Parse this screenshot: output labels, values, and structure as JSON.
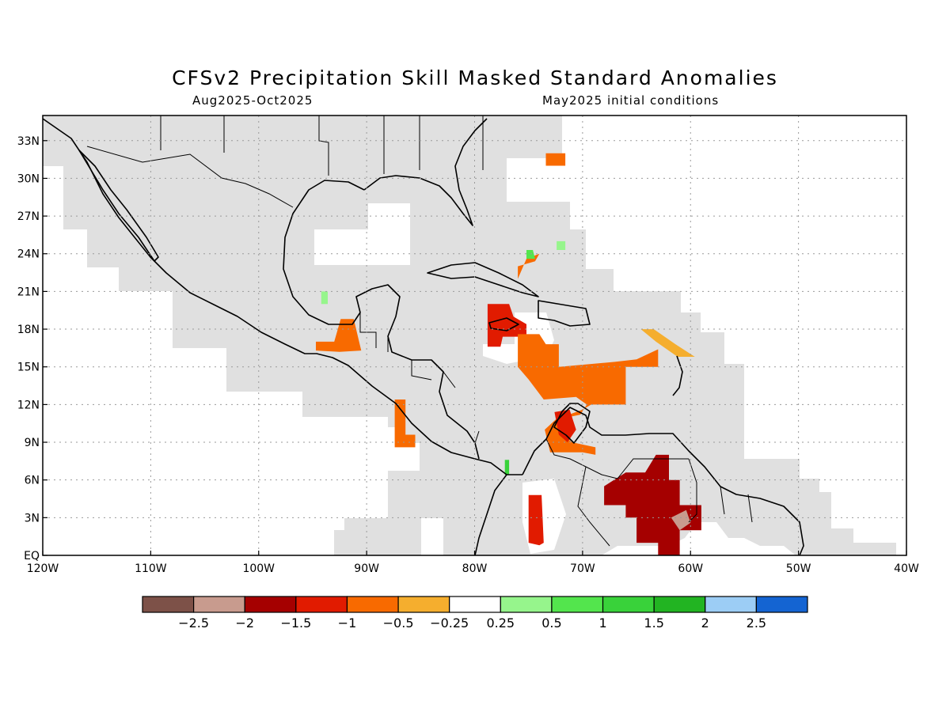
{
  "title": "CFSv2 Precipitation Skill Masked Standard Anomalies",
  "subtitle_left": "Aug2025-Oct2025",
  "subtitle_right": "May2025 initial conditions",
  "map": {
    "lon_range": [
      -120,
      -40
    ],
    "lat_range": [
      0,
      35
    ],
    "x_ticks": [
      {
        "lon": -120,
        "label": "120W"
      },
      {
        "lon": -110,
        "label": "110W"
      },
      {
        "lon": -100,
        "label": "100W"
      },
      {
        "lon": -90,
        "label": "90W"
      },
      {
        "lon": -80,
        "label": "80W"
      },
      {
        "lon": -70,
        "label": "70W"
      },
      {
        "lon": -60,
        "label": "60W"
      },
      {
        "lon": -50,
        "label": "50W"
      },
      {
        "lon": -40,
        "label": "40W"
      }
    ],
    "y_ticks": [
      {
        "lat": 0,
        "label": "EQ"
      },
      {
        "lat": 3,
        "label": "3N"
      },
      {
        "lat": 6,
        "label": "6N"
      },
      {
        "lat": 9,
        "label": "9N"
      },
      {
        "lat": 12,
        "label": "12N"
      },
      {
        "lat": 15,
        "label": "15N"
      },
      {
        "lat": 18,
        "label": "18N"
      },
      {
        "lat": 21,
        "label": "21N"
      },
      {
        "lat": 24,
        "label": "24N"
      },
      {
        "lat": 27,
        "label": "27N"
      },
      {
        "lat": 30,
        "label": "30N"
      },
      {
        "lat": 33,
        "label": "33N"
      }
    ],
    "mask_color": "#e0e0e0",
    "anomaly_regions": [
      {
        "name": "gulf-of-honduras",
        "value": -0.75,
        "color": "#f86a00",
        "lonlat": [
          [
            -94.7,
            17
          ],
          [
            -93,
            17
          ],
          [
            -92.4,
            18.8
          ],
          [
            -91.2,
            18.8
          ],
          [
            -90.5,
            16.3
          ],
          [
            -92.5,
            16.2
          ],
          [
            -94.7,
            16.3
          ]
        ]
      },
      {
        "name": "yucatan-green",
        "value": 0.4,
        "color": "#96f58c",
        "lonlat": [
          [
            -94.2,
            20
          ],
          [
            -93.6,
            20
          ],
          [
            -93.6,
            21
          ],
          [
            -94.2,
            21
          ]
        ]
      },
      {
        "name": "pacific-guatemala",
        "value": -0.75,
        "color": "#f86a00",
        "lonlat": [
          [
            -87.4,
            12.4
          ],
          [
            -86.4,
            12.4
          ],
          [
            -86.4,
            9.6
          ],
          [
            -85.5,
            9.6
          ],
          [
            -85.5,
            8.6
          ],
          [
            -87.4,
            8.6
          ]
        ]
      },
      {
        "name": "jamaica",
        "value": -1.25,
        "color": "#e11b00",
        "lonlat": [
          [
            -78.8,
            20
          ],
          [
            -76.8,
            20
          ],
          [
            -76.4,
            19
          ],
          [
            -75.2,
            18.4
          ],
          [
            -75.2,
            17.4
          ],
          [
            -77.4,
            17.4
          ],
          [
            -77.6,
            16.6
          ],
          [
            -78.8,
            16.6
          ]
        ]
      },
      {
        "name": "central-caribbean",
        "value": -0.75,
        "color": "#f86a00",
        "lonlat": [
          [
            -76,
            17.6
          ],
          [
            -74,
            17.6
          ],
          [
            -73.4,
            16.8
          ],
          [
            -72.2,
            16.8
          ],
          [
            -72.2,
            15
          ],
          [
            -67,
            15.4
          ],
          [
            -65,
            15.6
          ],
          [
            -63,
            16.4
          ],
          [
            -63,
            15
          ],
          [
            -66,
            15
          ],
          [
            -66,
            12
          ],
          [
            -69.2,
            12
          ],
          [
            -70,
            11.6
          ],
          [
            -72.5,
            10.8
          ],
          [
            -73.5,
            10
          ],
          [
            -73,
            8.2
          ],
          [
            -70,
            8.2
          ],
          [
            -68.8,
            8
          ],
          [
            -68.8,
            8.6
          ],
          [
            -71,
            9
          ],
          [
            -72,
            9.8
          ],
          [
            -71.3,
            11
          ],
          [
            -70.2,
            11.2
          ],
          [
            -69.6,
            12
          ],
          [
            -70.6,
            12.6
          ],
          [
            -73.6,
            12.4
          ],
          [
            -75,
            14
          ],
          [
            -76,
            15
          ]
        ]
      },
      {
        "name": "maracaibo",
        "value": -1.25,
        "color": "#e11b00",
        "lonlat": [
          [
            -72.6,
            11.4
          ],
          [
            -71.2,
            11.6
          ],
          [
            -70.6,
            10
          ],
          [
            -71.4,
            9
          ],
          [
            -72.2,
            9.6
          ]
        ]
      },
      {
        "name": "lesser-antilles",
        "value": -0.4,
        "color": "#f5ae2e",
        "lonlat": [
          [
            -64.6,
            18
          ],
          [
            -63.2,
            17
          ],
          [
            -61.2,
            15.8
          ],
          [
            -59.6,
            15.8
          ],
          [
            -61.4,
            16.8
          ],
          [
            -63.4,
            18
          ]
        ]
      },
      {
        "name": "bahamas",
        "value": -0.5,
        "color": "#f86a00",
        "lonlat": [
          [
            -76,
            23
          ],
          [
            -74.4,
            23.4
          ],
          [
            -74,
            24
          ],
          [
            -75.2,
            23.6
          ],
          [
            -76,
            22
          ]
        ]
      },
      {
        "name": "bahamas-green",
        "value": 0.4,
        "color": "#53e54d",
        "lonlat": [
          [
            -75.2,
            24.3
          ],
          [
            -74.6,
            24.3
          ],
          [
            -74.4,
            23.6
          ],
          [
            -75.2,
            23.6
          ]
        ]
      },
      {
        "name": "bermuda-area",
        "value": -0.75,
        "color": "#f86a00",
        "lonlat": [
          [
            -73.4,
            32
          ],
          [
            -71.6,
            32
          ],
          [
            -71.6,
            31
          ],
          [
            -73.4,
            31
          ]
        ]
      },
      {
        "name": "atlantic-green",
        "value": 0.4,
        "color": "#96f58c",
        "lonlat": [
          [
            -72.4,
            25
          ],
          [
            -71.6,
            25
          ],
          [
            -71.6,
            24.3
          ],
          [
            -72.4,
            24.3
          ]
        ]
      },
      {
        "name": "colombia-south",
        "value": -1.25,
        "color": "#e11b00",
        "lonlat": [
          [
            -75,
            4.8
          ],
          [
            -73.8,
            4.8
          ],
          [
            -73.6,
            1
          ],
          [
            -74,
            0.8
          ],
          [
            -75,
            1
          ]
        ]
      },
      {
        "name": "guiana-dark",
        "value": -1.75,
        "color": "#a50000",
        "lonlat": [
          [
            -66,
            6.6
          ],
          [
            -64.2,
            6.6
          ],
          [
            -63.2,
            8
          ],
          [
            -62,
            8
          ],
          [
            -62,
            6
          ],
          [
            -61,
            6
          ],
          [
            -61,
            4
          ],
          [
            -59,
            4
          ],
          [
            -59,
            2
          ],
          [
            -61,
            2
          ],
          [
            -61,
            0
          ],
          [
            -63,
            0
          ],
          [
            -63,
            1
          ],
          [
            -65,
            1
          ],
          [
            -65,
            3
          ],
          [
            -66,
            3
          ],
          [
            -66,
            4
          ],
          [
            -68,
            4
          ],
          [
            -68,
            5.5
          ]
        ]
      },
      {
        "name": "guiana-pink",
        "value": -2.25,
        "color": "#c89b8e",
        "lonlat": [
          [
            -61.8,
            3
          ],
          [
            -60.4,
            3.6
          ],
          [
            -60,
            2.6
          ],
          [
            -61,
            2
          ]
        ]
      },
      {
        "name": "colombia-green",
        "value": 0.75,
        "color": "#39d23a",
        "lonlat": [
          [
            -77.2,
            7.6
          ],
          [
            -76.8,
            7.6
          ],
          [
            -76.8,
            6.4
          ],
          [
            -77.2,
            6.4
          ]
        ]
      }
    ]
  },
  "colorbar": {
    "colors": [
      "#7d5148",
      "#c89b8e",
      "#a50000",
      "#e11b00",
      "#f86a00",
      "#f5ae2e",
      "#ffffff",
      "#96f58c",
      "#53e54d",
      "#39d23a",
      "#22b422",
      "#9ccdf5",
      "#1464d2"
    ],
    "labels": [
      "-2.5",
      "-2",
      "-1.5",
      "-1",
      "-0.5",
      "-0.25",
      "0.25",
      "0.5",
      "1",
      "1.5",
      "2",
      "2.5"
    ]
  }
}
